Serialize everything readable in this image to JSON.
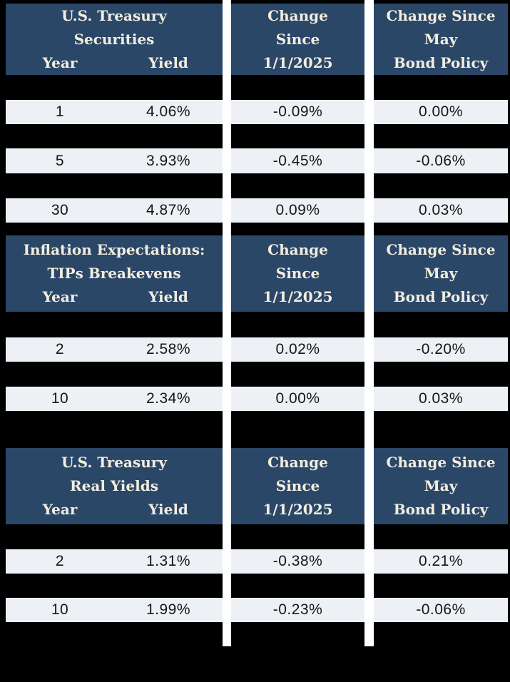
{
  "page_title": "Treasury Yields Summary Tables",
  "colors": {
    "background": "#000000",
    "header_bg": "#2b4767",
    "header_text": "#f2ede0",
    "row_bg": "#edf1f6",
    "row_text": "#151515",
    "gutter": "#ffffff"
  },
  "sections": [
    {
      "name": "U.S. Treasury Securities",
      "left_header": {
        "title_lines": [
          "U.S. Treasury",
          "Securities"
        ],
        "col_labels": [
          "Year",
          "Yield"
        ]
      },
      "change_header": {
        "lines": [
          "Change",
          "Since",
          "1/1/2025"
        ]
      },
      "policy_header": {
        "lines": [
          "Change Since",
          "May",
          "Bond Policy"
        ]
      },
      "rows": [
        {
          "year": "1",
          "yield": "4.06%",
          "change_jan": "-0.09%",
          "change_may": "0.00%"
        },
        {
          "year": "5",
          "yield": "3.93%",
          "change_jan": "-0.45%",
          "change_may": "-0.06%"
        },
        {
          "year": "30",
          "yield": "4.87%",
          "change_jan": "0.09%",
          "change_may": "0.03%"
        }
      ]
    },
    {
      "name": "Inflation Expectations: TIPs Breakevens",
      "left_header": {
        "title_lines": [
          "Inflation Expectations:",
          "TIPs Breakevens"
        ],
        "col_labels": [
          "Year",
          "Yield"
        ]
      },
      "change_header": {
        "lines": [
          "Change",
          "Since",
          "1/1/2025"
        ]
      },
      "policy_header": {
        "lines": [
          "Change Since",
          "May",
          "Bond Policy"
        ]
      },
      "rows": [
        {
          "year": "2",
          "yield": "2.58%",
          "change_jan": "0.02%",
          "change_may": "-0.20%"
        },
        {
          "year": "10",
          "yield": "2.34%",
          "change_jan": "0.00%",
          "change_may": "0.03%"
        }
      ]
    },
    {
      "name": "U.S. Treasury Real Yields",
      "left_header": {
        "title_lines": [
          "U.S. Treasury",
          "Real Yields"
        ],
        "col_labels": [
          "Year",
          "Yield"
        ]
      },
      "change_header": {
        "lines": [
          "Change",
          "Since",
          "1/1/2025"
        ]
      },
      "policy_header": {
        "lines": [
          "Change Since",
          "May",
          "Bond Policy"
        ]
      },
      "rows": [
        {
          "year": "2",
          "yield": "1.31%",
          "change_jan": "-0.38%",
          "change_may": "0.21%"
        },
        {
          "year": "10",
          "yield": "1.99%",
          "change_jan": "-0.23%",
          "change_may": "-0.06%"
        }
      ]
    }
  ],
  "chart_data": [
    {
      "type": "table",
      "title": "U.S. Treasury Securities",
      "columns": [
        "Year",
        "Yield",
        "Change Since 1/1/2025",
        "Change Since May Bond Policy"
      ],
      "rows": [
        [
          "1",
          "4.06%",
          "-0.09%",
          "0.00%"
        ],
        [
          "5",
          "3.93%",
          "-0.45%",
          "-0.06%"
        ],
        [
          "30",
          "4.87%",
          "0.09%",
          "0.03%"
        ]
      ]
    },
    {
      "type": "table",
      "title": "Inflation Expectations: TIPs Breakevens",
      "columns": [
        "Year",
        "Yield",
        "Change Since 1/1/2025",
        "Change Since May Bond Policy"
      ],
      "rows": [
        [
          "2",
          "2.58%",
          "0.02%",
          "-0.20%"
        ],
        [
          "10",
          "2.34%",
          "0.00%",
          "0.03%"
        ]
      ]
    },
    {
      "type": "table",
      "title": "U.S. Treasury Real Yields",
      "columns": [
        "Year",
        "Yield",
        "Change Since 1/1/2025",
        "Change Since May Bond Policy"
      ],
      "rows": [
        [
          "2",
          "1.31%",
          "-0.38%",
          "0.21%"
        ],
        [
          "10",
          "1.99%",
          "-0.23%",
          "-0.06%"
        ]
      ]
    }
  ]
}
